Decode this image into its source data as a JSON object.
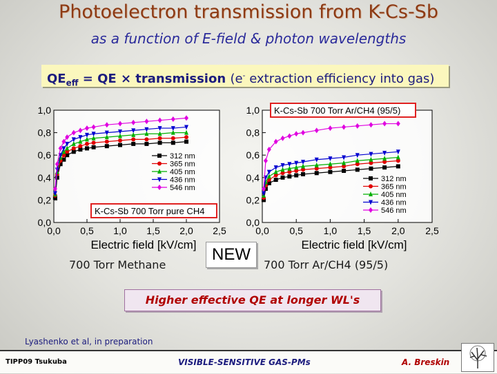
{
  "slide": {
    "title": "Photoelectron transmission from K-Cs-Sb",
    "subtitle": "as a function of E-field & photon wavelengths",
    "qe_formula": {
      "left": "QE",
      "sub": "eff",
      "mid": " = QE × transmission ",
      "paren_open": "(e",
      "sup": "-",
      "paren_rest": " extraction efficiency into gas)"
    },
    "caption_left": "700 Torr Methane",
    "new_label": "NEW",
    "caption_right": "700 Torr Ar/CH4 (95/5)",
    "highlight": "Higher effective QE at longer WL's",
    "reference": "Lyashenko et al, in preparation",
    "footer": {
      "left": "TIPP09 Tsukuba",
      "center": "VISIBLE-SENSITIVE GAS-PMs",
      "right": "A. Breskin"
    },
    "colors": {
      "title": "#8c3a14",
      "subtitle": "#2a2a9a",
      "highlight_text": "#b00000",
      "qe_box_bg": "#fbf7bd"
    }
  },
  "chart_data": [
    {
      "type": "line",
      "legend_title": "K-Cs-Sb 700 Torr pure CH4",
      "xlabel": "Electric field [kV/cm]",
      "ylabel": "",
      "xlim": [
        0,
        2.5
      ],
      "ylim": [
        0,
        1.0
      ],
      "xticks": [
        "0,0",
        "0,5",
        "1,0",
        "1,5",
        "2,0",
        "2,5"
      ],
      "yticks": [
        "0,0",
        "0,2",
        "0,4",
        "0,6",
        "0,8",
        "1,0"
      ],
      "legend_position": "right",
      "series": [
        {
          "name": "312 nm",
          "color": "#000000",
          "marker": "square",
          "x": [
            0.02,
            0.05,
            0.1,
            0.15,
            0.2,
            0.3,
            0.4,
            0.5,
            0.6,
            0.8,
            1.0,
            1.2,
            1.4,
            1.6,
            1.8,
            2.0
          ],
          "values": [
            0.22,
            0.4,
            0.52,
            0.56,
            0.6,
            0.63,
            0.65,
            0.66,
            0.67,
            0.68,
            0.69,
            0.7,
            0.7,
            0.71,
            0.71,
            0.72
          ]
        },
        {
          "name": "365 nm",
          "color": "#e00000",
          "marker": "circle",
          "x": [
            0.02,
            0.05,
            0.1,
            0.15,
            0.2,
            0.3,
            0.4,
            0.5,
            0.6,
            0.8,
            1.0,
            1.2,
            1.4,
            1.6,
            1.8,
            2.0
          ],
          "values": [
            0.24,
            0.43,
            0.55,
            0.6,
            0.63,
            0.66,
            0.68,
            0.7,
            0.71,
            0.72,
            0.73,
            0.74,
            0.74,
            0.75,
            0.75,
            0.76
          ]
        },
        {
          "name": "405 nm",
          "color": "#00b000",
          "marker": "triangle-up",
          "x": [
            0.02,
            0.05,
            0.1,
            0.15,
            0.2,
            0.3,
            0.4,
            0.5,
            0.6,
            0.8,
            1.0,
            1.2,
            1.4,
            1.6,
            1.8,
            2.0
          ],
          "values": [
            0.25,
            0.45,
            0.58,
            0.63,
            0.66,
            0.7,
            0.72,
            0.74,
            0.75,
            0.76,
            0.77,
            0.78,
            0.79,
            0.79,
            0.8,
            0.8
          ]
        },
        {
          "name": "436 nm",
          "color": "#0000d0",
          "marker": "triangle-down",
          "x": [
            0.02,
            0.05,
            0.1,
            0.15,
            0.2,
            0.3,
            0.4,
            0.5,
            0.6,
            0.8,
            1.0,
            1.2,
            1.4,
            1.6,
            1.8,
            2.0
          ],
          "values": [
            0.26,
            0.47,
            0.6,
            0.66,
            0.7,
            0.74,
            0.76,
            0.78,
            0.79,
            0.8,
            0.81,
            0.82,
            0.83,
            0.84,
            0.84,
            0.85
          ]
        },
        {
          "name": "546 nm",
          "color": "#e000e0",
          "marker": "diamond",
          "x": [
            0.02,
            0.05,
            0.1,
            0.15,
            0.2,
            0.3,
            0.4,
            0.5,
            0.6,
            0.8,
            1.0,
            1.2,
            1.4,
            1.6,
            1.8,
            2.0
          ],
          "values": [
            0.3,
            0.52,
            0.66,
            0.72,
            0.76,
            0.8,
            0.82,
            0.84,
            0.85,
            0.87,
            0.88,
            0.89,
            0.9,
            0.91,
            0.92,
            0.93
          ]
        }
      ]
    },
    {
      "type": "line",
      "legend_title": "K-Cs-Sb 700 Torr Ar/CH4 (95/5)",
      "xlabel": "Electric field [kV/cm]",
      "ylabel": "",
      "xlim": [
        0,
        2.5
      ],
      "ylim": [
        0,
        1.0
      ],
      "xticks": [
        "0,0",
        "0,5",
        "1,0",
        "1,5",
        "2,0",
        "2,5"
      ],
      "yticks": [
        "0,0",
        "0,2",
        "0,4",
        "0,6",
        "0,8",
        "1,0"
      ],
      "legend_position": "right",
      "series": [
        {
          "name": "312 nm",
          "color": "#000000",
          "marker": "square",
          "x": [
            0.02,
            0.05,
            0.1,
            0.2,
            0.3,
            0.4,
            0.5,
            0.6,
            0.8,
            1.0,
            1.2,
            1.4,
            1.6,
            1.8,
            2.0
          ],
          "values": [
            0.2,
            0.3,
            0.35,
            0.38,
            0.4,
            0.41,
            0.42,
            0.43,
            0.44,
            0.45,
            0.46,
            0.47,
            0.48,
            0.49,
            0.5
          ]
        },
        {
          "name": "365 nm",
          "color": "#e00000",
          "marker": "circle",
          "x": [
            0.02,
            0.05,
            0.1,
            0.2,
            0.3,
            0.4,
            0.5,
            0.6,
            0.8,
            1.0,
            1.2,
            1.4,
            1.6,
            1.8,
            2.0
          ],
          "values": [
            0.22,
            0.33,
            0.38,
            0.42,
            0.44,
            0.45,
            0.46,
            0.47,
            0.48,
            0.49,
            0.5,
            0.52,
            0.53,
            0.54,
            0.55
          ]
        },
        {
          "name": "405 nm",
          "color": "#00b000",
          "marker": "triangle-up",
          "x": [
            0.02,
            0.05,
            0.1,
            0.2,
            0.3,
            0.4,
            0.5,
            0.6,
            0.8,
            1.0,
            1.2,
            1.4,
            1.6,
            1.8,
            2.0
          ],
          "values": [
            0.24,
            0.36,
            0.41,
            0.45,
            0.47,
            0.48,
            0.49,
            0.5,
            0.51,
            0.52,
            0.53,
            0.55,
            0.56,
            0.57,
            0.58
          ]
        },
        {
          "name": "436 nm",
          "color": "#0000d0",
          "marker": "triangle-down",
          "x": [
            0.02,
            0.05,
            0.1,
            0.2,
            0.3,
            0.4,
            0.5,
            0.6,
            0.8,
            1.0,
            1.2,
            1.4,
            1.6,
            1.8,
            2.0
          ],
          "values": [
            0.26,
            0.4,
            0.45,
            0.49,
            0.51,
            0.52,
            0.53,
            0.54,
            0.56,
            0.57,
            0.58,
            0.6,
            0.61,
            0.62,
            0.63
          ]
        },
        {
          "name": "546 nm",
          "color": "#e000e0",
          "marker": "diamond",
          "x": [
            0.02,
            0.05,
            0.1,
            0.2,
            0.3,
            0.4,
            0.5,
            0.6,
            0.8,
            1.0,
            1.2,
            1.4,
            1.6,
            1.8,
            2.0
          ],
          "values": [
            0.3,
            0.55,
            0.65,
            0.72,
            0.75,
            0.77,
            0.79,
            0.8,
            0.82,
            0.84,
            0.85,
            0.86,
            0.87,
            0.88,
            0.88
          ]
        }
      ]
    }
  ]
}
